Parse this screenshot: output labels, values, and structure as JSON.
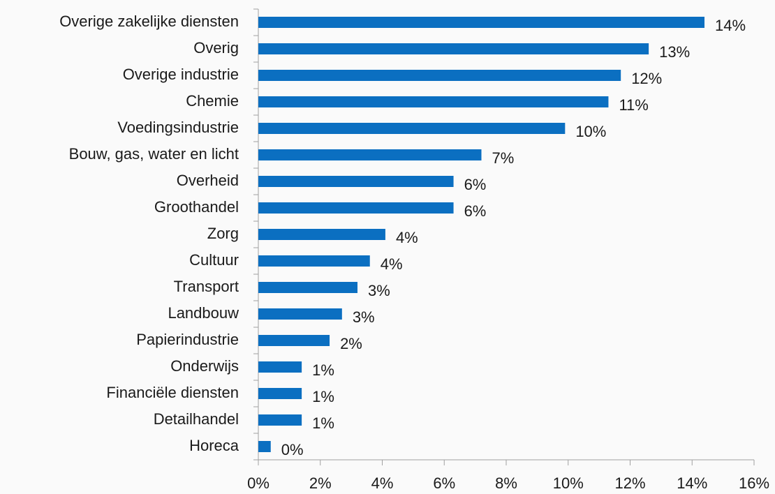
{
  "chart_data": {
    "type": "barh",
    "categories": [
      "Overige zakelijke diensten",
      "Overig",
      "Overige industrie",
      "Chemie",
      "Voedingsindustrie",
      "Bouw, gas, water en licht",
      "Overheid",
      "Groothandel",
      "Zorg",
      "Cultuur",
      "Transport",
      "Landbouw",
      "Papierindustrie",
      "Onderwijs",
      "Financiële diensten",
      "Detailhandel",
      "Horeca"
    ],
    "values": [
      14.4,
      12.6,
      11.7,
      11.3,
      9.9,
      7.2,
      6.3,
      6.3,
      4.1,
      3.6,
      3.2,
      2.7,
      2.3,
      1.4,
      1.4,
      1.4,
      0.4
    ],
    "value_labels": [
      "14%",
      "13%",
      "12%",
      "11%",
      "10%",
      "7%",
      "6%",
      "6%",
      "4%",
      "4%",
      "3%",
      "3%",
      "2%",
      "1%",
      "1%",
      "1%",
      "0%"
    ],
    "color": "#0b6fc1",
    "xlim": [
      0,
      16
    ],
    "xticks": [
      {
        "value": 0,
        "label": "0%"
      },
      {
        "value": 2,
        "label": "2%"
      },
      {
        "value": 4,
        "label": "4%"
      },
      {
        "value": 6,
        "label": "6%"
      },
      {
        "value": 8,
        "label": "8%"
      },
      {
        "value": 10,
        "label": "10%"
      },
      {
        "value": 12,
        "label": "12%"
      },
      {
        "value": 14,
        "label": "14%"
      },
      {
        "value": 16,
        "label": "16%"
      }
    ],
    "grid": false
  }
}
